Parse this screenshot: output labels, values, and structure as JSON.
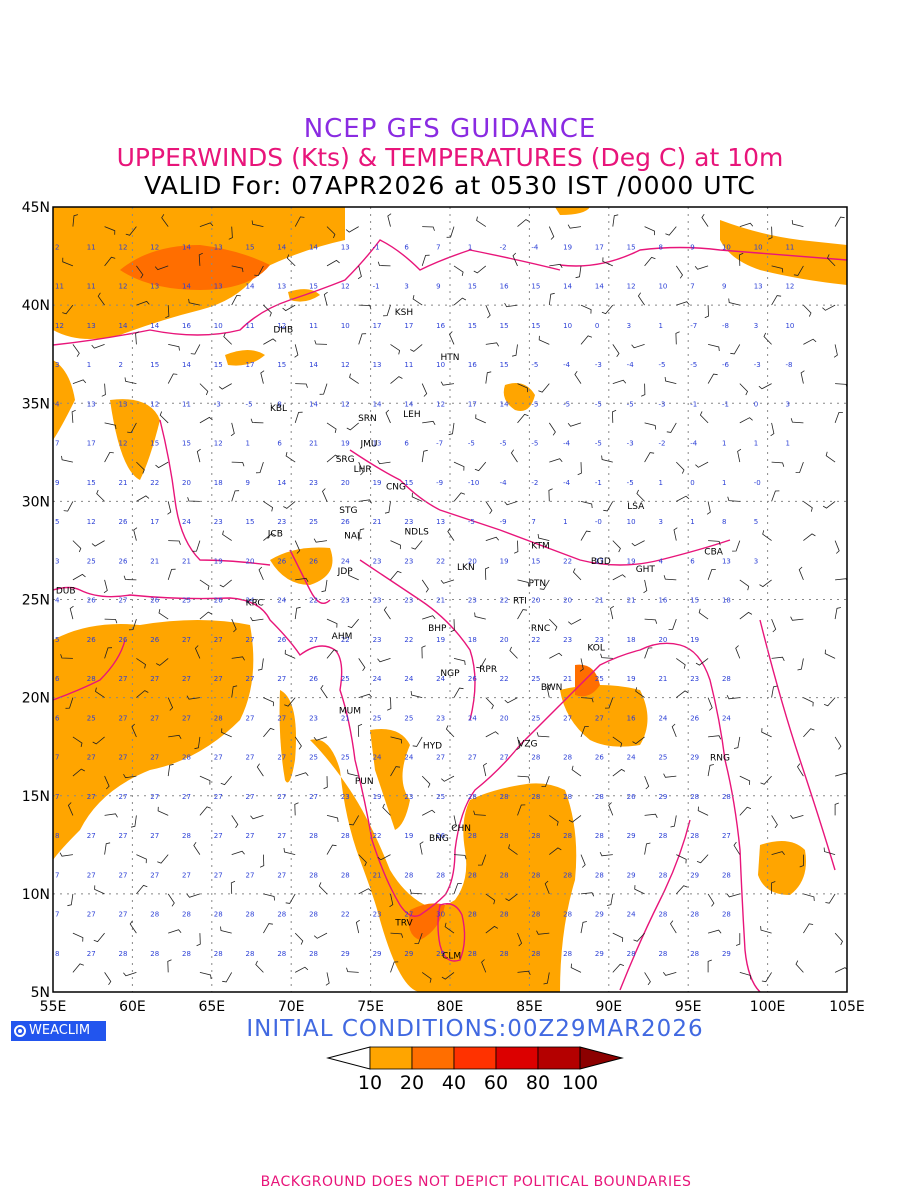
{
  "title": {
    "line1": "NCEP GFS GUIDANCE",
    "line2": "UPPERWINDS (Kts) & TEMPERATURES (Deg C) at 10m",
    "line3": "VALID For: 07APR2026 at 0530 IST /0000 UTC"
  },
  "initial_conditions": "INITIAL  CONDITIONS:00Z29MAR2026",
  "logo_text": "WEACLIM",
  "footer": "BACKGROUND DOES NOT DEPICT POLITICAL BOUNDARIES",
  "axes": {
    "lat_labels": [
      "45N",
      "40N",
      "35N",
      "30N",
      "25N",
      "20N",
      "15N",
      "10N",
      "5N"
    ],
    "lon_labels": [
      "55E",
      "60E",
      "65E",
      "70E",
      "75E",
      "80E",
      "85E",
      "90E",
      "95E",
      "100E",
      "105E"
    ]
  },
  "legend": {
    "labels": [
      "10",
      "20",
      "40",
      "60",
      "80",
      "100"
    ],
    "colors": [
      "#ffa500",
      "#ff6e00",
      "#ff3200",
      "#dc0000",
      "#b40000",
      "#8c0000"
    ]
  },
  "stations": [
    {
      "code": "KSH",
      "lon": 77.1,
      "lat": 39.5
    },
    {
      "code": "DHB",
      "lon": 69.5,
      "lat": 38.6
    },
    {
      "code": "HTN",
      "lon": 80.0,
      "lat": 37.2
    },
    {
      "code": "KBL",
      "lon": 69.2,
      "lat": 34.6
    },
    {
      "code": "SRN",
      "lon": 74.8,
      "lat": 34.1
    },
    {
      "code": "LEH",
      "lon": 77.6,
      "lat": 34.3
    },
    {
      "code": "JMU",
      "lon": 74.9,
      "lat": 32.8
    },
    {
      "code": "SRG",
      "lon": 73.4,
      "lat": 32.0
    },
    {
      "code": "LHR",
      "lon": 74.5,
      "lat": 31.5
    },
    {
      "code": "CNG",
      "lon": 76.6,
      "lat": 30.6
    },
    {
      "code": "LSA",
      "lon": 91.7,
      "lat": 29.6
    },
    {
      "code": "STG",
      "lon": 73.6,
      "lat": 29.4
    },
    {
      "code": "JCB",
      "lon": 69.0,
      "lat": 28.2
    },
    {
      "code": "NAL",
      "lon": 73.9,
      "lat": 28.1
    },
    {
      "code": "NDLS",
      "lon": 77.9,
      "lat": 28.3
    },
    {
      "code": "KTM",
      "lon": 85.7,
      "lat": 27.6
    },
    {
      "code": "CBA",
      "lon": 96.6,
      "lat": 27.3
    },
    {
      "code": "BGD",
      "lon": 89.5,
      "lat": 26.8
    },
    {
      "code": "GHT",
      "lon": 92.3,
      "lat": 26.4
    },
    {
      "code": "JDP",
      "lon": 73.4,
      "lat": 26.3
    },
    {
      "code": "LKN",
      "lon": 81.0,
      "lat": 26.5
    },
    {
      "code": "PTN",
      "lon": 85.5,
      "lat": 25.7
    },
    {
      "code": "DUB",
      "lon": 55.8,
      "lat": 25.3
    },
    {
      "code": "KRC",
      "lon": 67.7,
      "lat": 24.7
    },
    {
      "code": "RTI",
      "lon": 84.4,
      "lat": 24.8
    },
    {
      "code": "BHP",
      "lon": 79.2,
      "lat": 23.4
    },
    {
      "code": "AHM",
      "lon": 73.2,
      "lat": 23.0
    },
    {
      "code": "RNC",
      "lon": 85.7,
      "lat": 23.4
    },
    {
      "code": "KOL",
      "lon": 89.2,
      "lat": 22.4
    },
    {
      "code": "RPR",
      "lon": 82.4,
      "lat": 21.3
    },
    {
      "code": "NGP",
      "lon": 80.0,
      "lat": 21.1
    },
    {
      "code": "BWN",
      "lon": 86.4,
      "lat": 20.4
    },
    {
      "code": "MUM",
      "lon": 73.7,
      "lat": 19.2
    },
    {
      "code": "HYD",
      "lon": 78.9,
      "lat": 17.4
    },
    {
      "code": "VZG",
      "lon": 84.9,
      "lat": 17.5
    },
    {
      "code": "RNG",
      "lon": 97.0,
      "lat": 16.8
    },
    {
      "code": "PUN",
      "lon": 74.6,
      "lat": 15.6
    },
    {
      "code": "CHN",
      "lon": 80.7,
      "lat": 13.2
    },
    {
      "code": "BNG",
      "lon": 79.3,
      "lat": 12.7
    },
    {
      "code": "TRV",
      "lon": 77.1,
      "lat": 8.4
    },
    {
      "code": "CLM",
      "lon": 80.1,
      "lat": 6.7
    }
  ],
  "temperature_rows": [
    {
      "lat": 43,
      "values": [
        "2",
        "11",
        "12",
        "12",
        "14",
        "13",
        "15",
        "14",
        "14",
        "13",
        "-1",
        "6",
        "7",
        "1",
        "-2",
        "-4",
        "19",
        "17",
        "15",
        "8",
        "9",
        "10",
        "10",
        "11"
      ]
    },
    {
      "lat": 41,
      "values": [
        "11",
        "11",
        "12",
        "13",
        "14",
        "13",
        "14",
        "13",
        "15",
        "12",
        "-1",
        "3",
        "9",
        "15",
        "16",
        "15",
        "14",
        "14",
        "12",
        "10",
        "7",
        "9",
        "13",
        "12"
      ]
    },
    {
      "lat": 39,
      "values": [
        "12",
        "13",
        "14",
        "14",
        "16",
        "10",
        "11",
        "12",
        "11",
        "10",
        "17",
        "17",
        "16",
        "15",
        "15",
        "15",
        "10",
        "0",
        "3",
        "1",
        "-7",
        "-8",
        "3",
        "10"
      ]
    },
    {
      "lat": 37,
      "values": [
        "3",
        "1",
        "2",
        "15",
        "14",
        "15",
        "17",
        "15",
        "14",
        "12",
        "13",
        "11",
        "10",
        "16",
        "15",
        "-5",
        "-4",
        "-3",
        "-4",
        "-5",
        "-5",
        "-6",
        "-3",
        "-8"
      ]
    },
    {
      "lat": 35,
      "values": [
        "4",
        "13",
        "13",
        "12",
        "11",
        "-3",
        "-5",
        "8",
        "14",
        "12",
        "14",
        "14",
        "12",
        "17",
        "14",
        "-5",
        "-5",
        "-5",
        "-5",
        "-3",
        "-1",
        "-1",
        "0",
        "3"
      ]
    },
    {
      "lat": 33,
      "values": [
        "7",
        "17",
        "12",
        "15",
        "15",
        "12",
        "1",
        "6",
        "21",
        "19",
        "13",
        "6",
        "-7",
        "-5",
        "-5",
        "-5",
        "-4",
        "-5",
        "-3",
        "-2",
        "-4",
        "1",
        "1",
        "1"
      ]
    },
    {
      "lat": 31,
      "values": [
        "9",
        "15",
        "21",
        "22",
        "20",
        "18",
        "9",
        "14",
        "23",
        "20",
        "19",
        "15",
        "-9",
        "-10",
        "-4",
        "-2",
        "-4",
        "-1",
        "-5",
        "1",
        "0",
        "1",
        "-0"
      ]
    },
    {
      "lat": 29,
      "values": [
        "5",
        "12",
        "26",
        "17",
        "24",
        "23",
        "15",
        "23",
        "25",
        "26",
        "21",
        "23",
        "13",
        "-5",
        "-9",
        "7",
        "1",
        "-0",
        "10",
        "3",
        "1",
        "8",
        "5"
      ]
    },
    {
      "lat": 27,
      "values": [
        "3",
        "25",
        "26",
        "21",
        "21",
        "19",
        "20",
        "26",
        "26",
        "24",
        "23",
        "23",
        "22",
        "20",
        "19",
        "15",
        "22",
        "17",
        "19",
        "4",
        "6",
        "13",
        "3"
      ]
    },
    {
      "lat": 25,
      "values": [
        "4",
        "26",
        "27",
        "26",
        "25",
        "26",
        "24",
        "24",
        "22",
        "23",
        "23",
        "23",
        "21",
        "23",
        "22",
        "20",
        "20",
        "21",
        "21",
        "16",
        "15",
        "18"
      ]
    },
    {
      "lat": 23,
      "values": [
        "5",
        "26",
        "26",
        "26",
        "27",
        "27",
        "27",
        "26",
        "27",
        "22",
        "23",
        "22",
        "19",
        "18",
        "20",
        "22",
        "23",
        "23",
        "18",
        "20",
        "19"
      ]
    },
    {
      "lat": 21,
      "values": [
        "6",
        "28",
        "27",
        "27",
        "27",
        "27",
        "27",
        "27",
        "26",
        "25",
        "24",
        "24",
        "24",
        "26",
        "22",
        "25",
        "21",
        "25",
        "19",
        "21",
        "23",
        "28"
      ]
    },
    {
      "lat": 19,
      "values": [
        "6",
        "25",
        "27",
        "27",
        "27",
        "28",
        "27",
        "27",
        "23",
        "21",
        "25",
        "25",
        "23",
        "24",
        "20",
        "25",
        "27",
        "27",
        "16",
        "24",
        "26",
        "24"
      ]
    },
    {
      "lat": 17,
      "values": [
        "7",
        "27",
        "27",
        "27",
        "28",
        "27",
        "27",
        "27",
        "25",
        "25",
        "24",
        "24",
        "27",
        "27",
        "27",
        "28",
        "28",
        "26",
        "24",
        "25",
        "29"
      ]
    },
    {
      "lat": 15,
      "values": [
        "7",
        "27",
        "27",
        "27",
        "27",
        "27",
        "27",
        "27",
        "27",
        "23",
        "19",
        "23",
        "25",
        "28",
        "28",
        "28",
        "28",
        "28",
        "26",
        "29",
        "28",
        "28"
      ]
    },
    {
      "lat": 13,
      "values": [
        "8",
        "27",
        "27",
        "27",
        "28",
        "27",
        "27",
        "27",
        "28",
        "28",
        "22",
        "19",
        "26",
        "28",
        "28",
        "28",
        "28",
        "28",
        "29",
        "28",
        "28",
        "27"
      ]
    },
    {
      "lat": 11,
      "values": [
        "7",
        "27",
        "27",
        "27",
        "27",
        "27",
        "27",
        "27",
        "28",
        "28",
        "21",
        "28",
        "28",
        "28",
        "28",
        "28",
        "28",
        "28",
        "29",
        "28",
        "29",
        "28"
      ]
    },
    {
      "lat": 9,
      "values": [
        "7",
        "27",
        "27",
        "28",
        "28",
        "28",
        "28",
        "28",
        "28",
        "22",
        "23",
        "27",
        "30",
        "28",
        "28",
        "28",
        "28",
        "29",
        "24",
        "28",
        "28",
        "28"
      ]
    },
    {
      "lat": 7,
      "values": [
        "8",
        "27",
        "28",
        "28",
        "28",
        "28",
        "28",
        "28",
        "28",
        "29",
        "29",
        "29",
        "29",
        "28",
        "28",
        "28",
        "28",
        "29",
        "28",
        "28",
        "28",
        "29"
      ]
    }
  ]
}
